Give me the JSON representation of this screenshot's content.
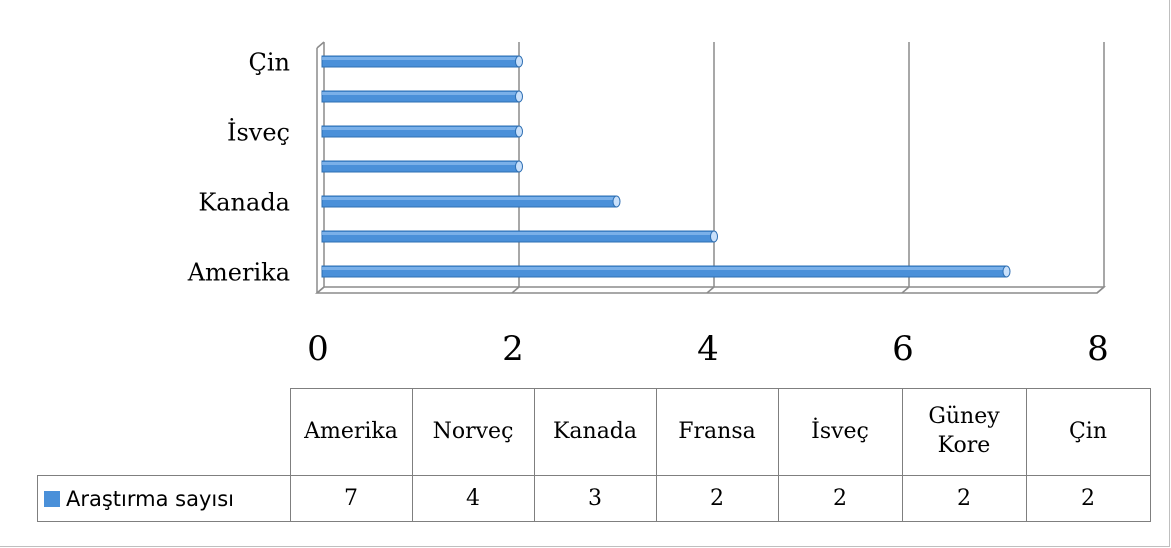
{
  "chart_data": {
    "type": "bar",
    "orientation": "horizontal",
    "categories": [
      "Amerika",
      "Norveç",
      "Kanada",
      "Fransa",
      "İsveç",
      "Güney Kore",
      "Çin"
    ],
    "series": [
      {
        "name": "Araştırma sayısı",
        "values": [
          7,
          4,
          3,
          2,
          2,
          2,
          2
        ]
      }
    ],
    "xlim": [
      0,
      8
    ],
    "xticks": [
      0,
      2,
      4,
      6,
      8
    ],
    "grid": true,
    "three_d": true,
    "data_table": true,
    "colors": {
      "bar": "#4a90d9",
      "bar_edge": "#2e6fb3",
      "grid": "#8c8c8c"
    }
  },
  "table": {
    "header_lines": [
      [
        "Amerika"
      ],
      [
        "Norveç"
      ],
      [
        "Kanada"
      ],
      [
        "Fransa"
      ],
      [
        "İsveç"
      ],
      [
        "Güney",
        "Kore"
      ],
      [
        "Çin"
      ]
    ],
    "legend_label": "Araştırma sayısı",
    "values": [
      "7",
      "4",
      "3",
      "2",
      "2",
      "2",
      "2"
    ]
  }
}
